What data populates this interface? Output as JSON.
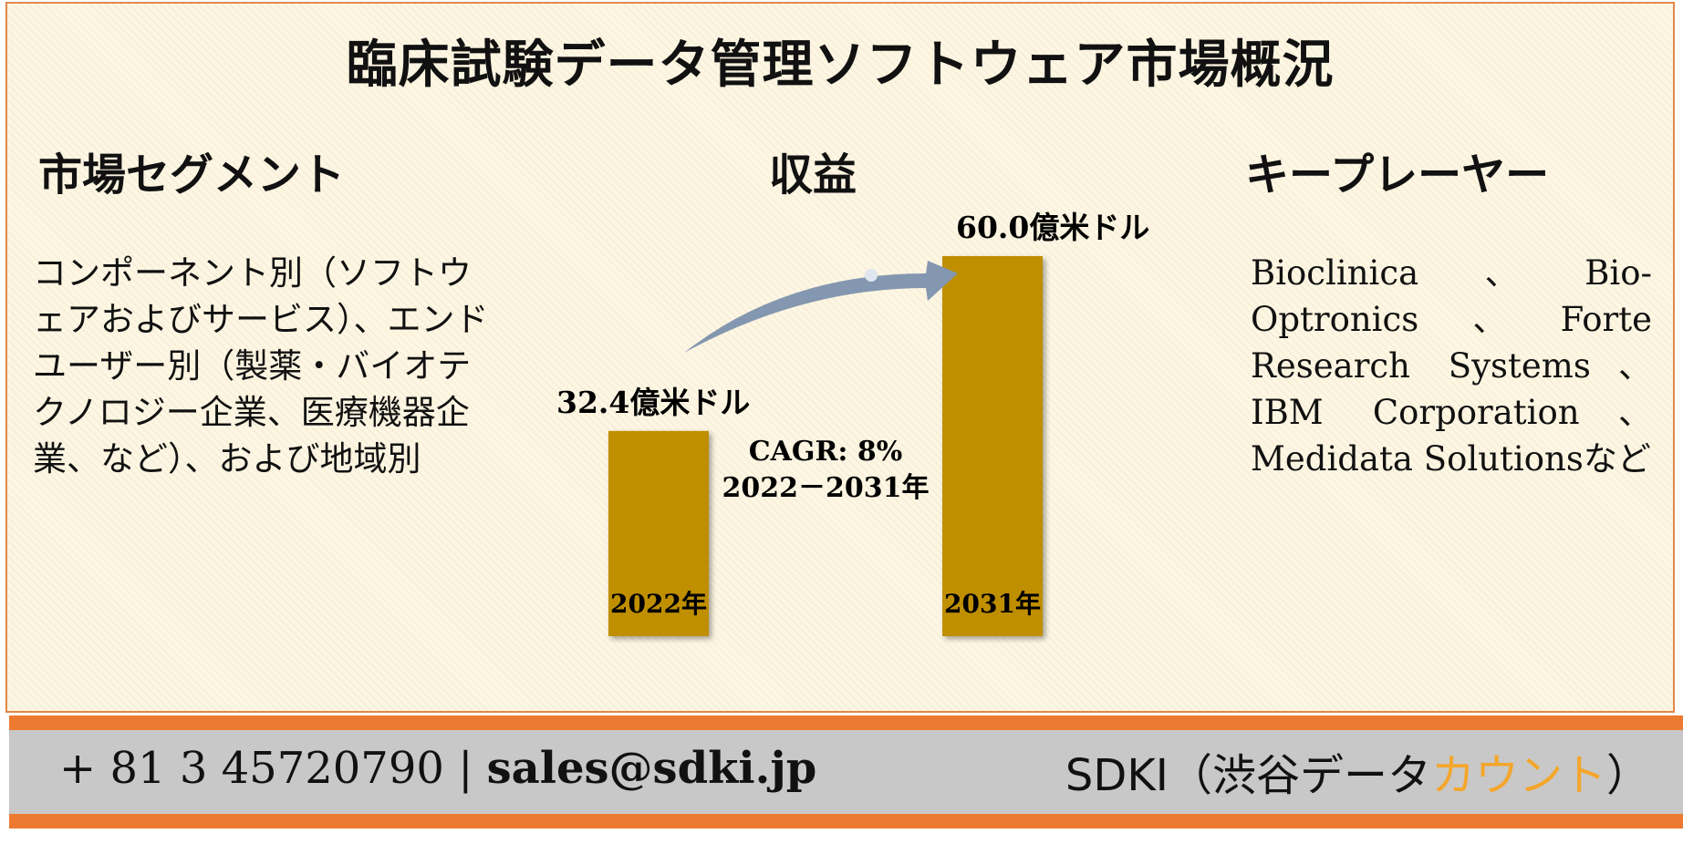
{
  "title": "臨床試験データ管理ソフトウェア市場概況",
  "segments": {
    "heading": "市場セグメント",
    "text": "コンポーネント別（ソフトウェアおよびサービス）、エンドユーザー別（製薬・バイオテクノロジー企業、医療機器企業、など）、および地域別"
  },
  "revenue": {
    "heading": "収益",
    "cagr": "CAGR: 8%",
    "period": "2022－2031年"
  },
  "players": {
    "heading": "キープレーヤー",
    "text": "Bioclinica、Bio-Optronics、Forte Research Systems、IBM Corporation、Medidata Solutionsなど"
  },
  "chart_data": {
    "type": "bar",
    "categories": [
      "2022年",
      "2031年"
    ],
    "values": [
      32.4,
      60.0
    ],
    "value_labels": [
      "32.4億米ドル",
      "60.0億米ドル"
    ],
    "unit": "億米ドル",
    "bar_color": "#bf8f00"
  },
  "footer": {
    "phone": "+ 81 3 45720790",
    "separator": "|",
    "email": "sales@sdki.jp",
    "brand_main": "SDKI（渋谷データ",
    "brand_accent": "カウント",
    "brand_close": "）"
  },
  "colors": {
    "border": "#e0894a",
    "footer_band": "#ec7a30",
    "footer_bg": "#c8c8c8",
    "brand_accent": "#f4a62a",
    "arrow": "#8497b0"
  }
}
